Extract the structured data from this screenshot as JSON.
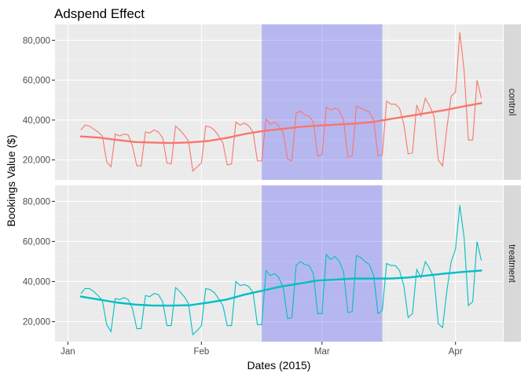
{
  "chart_data": {
    "type": "line",
    "title": "Adspend Effect",
    "xlabel": "Dates (2015)",
    "ylabel": "Bookings Value ($)",
    "x_ticks": [
      {
        "date": "2015-01-01",
        "label": "Jan"
      },
      {
        "date": "2015-02-01",
        "label": "Feb"
      },
      {
        "date": "2015-03-01",
        "label": "Mar"
      },
      {
        "date": "2015-04-01",
        "label": "Apr"
      }
    ],
    "xlim": [
      "2014-12-29",
      "2015-04-12"
    ],
    "y_ticks": [
      {
        "value": 20000,
        "label": "20,000"
      },
      {
        "value": 40000,
        "label": "40,000"
      },
      {
        "value": 60000,
        "label": "60,000"
      },
      {
        "value": 80000,
        "label": "80,000"
      }
    ],
    "ylim": [
      10000,
      88000
    ],
    "highlight": {
      "start": "2015-02-15",
      "end": "2015-03-15",
      "color": "#0000ff",
      "opacity": 0.22
    },
    "start_date": "2015-01-04",
    "panels": [
      {
        "strip": "control",
        "color": "#f8766d",
        "values": [
          35000,
          37500,
          37000,
          35500,
          34000,
          32000,
          19000,
          16500,
          33000,
          32000,
          33000,
          32500,
          27000,
          17000,
          17000,
          34000,
          33500,
          35000,
          34000,
          31000,
          18500,
          18000,
          37000,
          35000,
          32500,
          29500,
          14500,
          16500,
          18500,
          37000,
          36500,
          35000,
          32000,
          28500,
          17500,
          18000,
          39000,
          37500,
          38500,
          37000,
          34000,
          19500,
          19500,
          40500,
          38000,
          39000,
          37000,
          33500,
          20500,
          19500,
          43500,
          44500,
          42500,
          42000,
          39000,
          22000,
          22500,
          46500,
          45000,
          46000,
          45000,
          40000,
          21500,
          22000,
          47000,
          46000,
          45000,
          44000,
          40000,
          22000,
          22500,
          49500,
          48000,
          48000,
          46000,
          38000,
          23000,
          23500,
          47500,
          42000,
          51000,
          47000,
          42000,
          20000,
          17000,
          36000,
          52000,
          54000,
          84000,
          65000,
          30000,
          30000,
          60000,
          51000
        ],
        "trend": [
          31800,
          31200,
          30000,
          29000,
          28700,
          28500,
          28800,
          29500,
          31000,
          33000,
          34500,
          35500,
          36500,
          37200,
          37700,
          38200,
          39000,
          40500,
          42000,
          43500,
          45000,
          46800,
          48500
        ]
      },
      {
        "strip": "treatment",
        "color": "#00bfc4",
        "values": [
          34000,
          36500,
          36500,
          35000,
          33000,
          30500,
          18500,
          15000,
          31500,
          31000,
          32000,
          31000,
          26500,
          16500,
          16500,
          33000,
          32500,
          34000,
          33500,
          30000,
          18000,
          18000,
          37000,
          35000,
          32500,
          29000,
          13500,
          15500,
          18000,
          36500,
          36000,
          34500,
          31500,
          28000,
          18000,
          18000,
          40000,
          38000,
          38500,
          37500,
          34500,
          18500,
          18500,
          45500,
          43000,
          44000,
          42000,
          37000,
          21500,
          22000,
          48000,
          50000,
          48500,
          48000,
          44000,
          24000,
          24000,
          53500,
          51000,
          52500,
          50000,
          45000,
          24500,
          25000,
          53000,
          52000,
          50000,
          48500,
          43000,
          24000,
          25500,
          49000,
          48000,
          48000,
          45500,
          38000,
          22000,
          24000,
          46000,
          42000,
          50000,
          46500,
          42000,
          19000,
          17000,
          35500,
          50000,
          56000,
          78000,
          62000,
          28000,
          30000,
          60000,
          50500
        ],
        "trend": [
          32500,
          31000,
          29500,
          28500,
          28000,
          28000,
          28200,
          29500,
          31000,
          33500,
          35500,
          37500,
          39000,
          40500,
          41000,
          41500,
          41500,
          41500,
          42000,
          43000,
          44000,
          44800,
          45500
        ]
      }
    ]
  }
}
